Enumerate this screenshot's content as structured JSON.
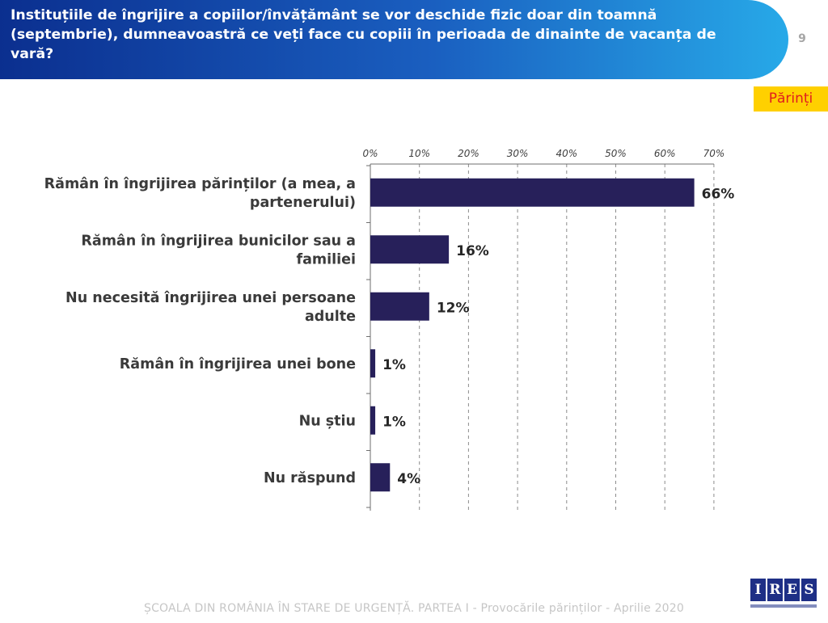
{
  "header": {
    "title": "Instituțiile de îngrijire a copiilor/învățământ se vor deschide fizic doar din toamnă (septembrie), dumneavoastră ce veți face cu copiii în perioada de dinainte de vacanța de vară?",
    "page_number": "9"
  },
  "segment_badge": "Părinți",
  "chart_data": {
    "type": "bar",
    "orientation": "horizontal",
    "categories": [
      "Rămân în îngrijirea părinților (a mea, a partenerului)",
      "Rămân în îngrijirea bunicilor sau a familiei",
      "Nu necesită îngrijirea unei persoane adulte",
      "Rămân în îngrijirea unei bone",
      "Nu știu",
      "Nu răspund"
    ],
    "values": [
      66,
      16,
      12,
      1,
      1,
      4
    ],
    "value_labels": [
      "66%",
      "16%",
      "12%",
      "1%",
      "1%",
      "4%"
    ],
    "xlim": [
      0,
      70
    ],
    "x_ticks": [
      "0%",
      "10%",
      "20%",
      "30%",
      "40%",
      "50%",
      "60%",
      "70%"
    ],
    "grid": "vertical-dashed",
    "axis_position": "top",
    "bar_color": "#27205a"
  },
  "footer": {
    "text": "ȘCOALA DIN ROMÂNIA ÎN STARE DE URGENȚĂ. PARTEA I - Provocările părinților - Aprilie 2020"
  },
  "logo": {
    "letters": [
      "I",
      "R",
      "E",
      "S"
    ]
  }
}
